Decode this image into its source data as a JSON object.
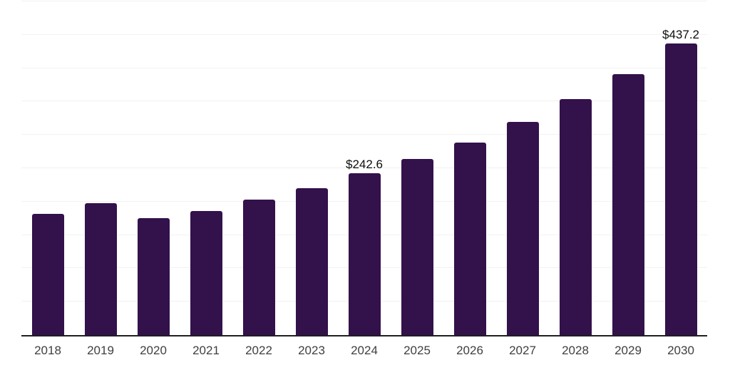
{
  "chart_data": {
    "type": "bar",
    "title": "",
    "xlabel": "",
    "ylabel": "",
    "categories": [
      "2018",
      "2019",
      "2020",
      "2021",
      "2022",
      "2023",
      "2024",
      "2025",
      "2026",
      "2027",
      "2028",
      "2029",
      "2030"
    ],
    "values": [
      182,
      198,
      175,
      186,
      203,
      220,
      242.6,
      264,
      289,
      319,
      354,
      391,
      437.2
    ],
    "data_labels": {
      "2024": "$242.6",
      "2030": "$437.2"
    },
    "ylim": [
      0,
      500
    ],
    "grid_step": 50,
    "grid": true,
    "y_tick_labels_visible": false,
    "legend_position": "none",
    "colors": {
      "bar": "#33114B",
      "gridline": "#f2f2f2",
      "axis_line": "#1f1f1f",
      "tick_label": "#3f3f3f",
      "data_label": "#0d0d0d",
      "background": "#ffffff"
    }
  }
}
